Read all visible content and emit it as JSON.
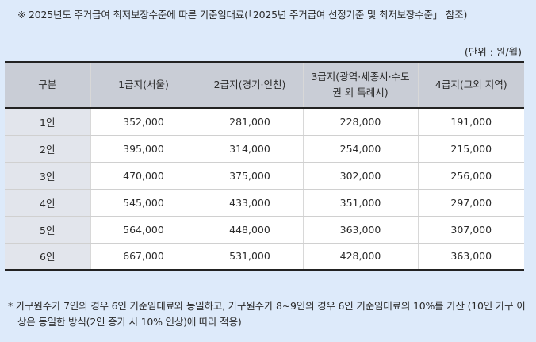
{
  "title": "※ 2025년도 주거급여 최저보장수준에 따른 기준임대료(「2025년 주거급여 선정기준 및 최저보장수준」 참조)",
  "unit": "(단위 : 원/월)",
  "table": {
    "headers": [
      "구분",
      "1급지(서울)",
      "2급지(경기·인천)",
      "3급지(광역·세종시·수도권 외 특례시)",
      "4급지(그외 지역)"
    ],
    "rows": [
      [
        "1인",
        "352,000",
        "281,000",
        "228,000",
        "191,000"
      ],
      [
        "2인",
        "395,000",
        "314,000",
        "254,000",
        "215,000"
      ],
      [
        "3인",
        "470,000",
        "375,000",
        "302,000",
        "256,000"
      ],
      [
        "4인",
        "545,000",
        "433,000",
        "351,000",
        "297,000"
      ],
      [
        "5인",
        "564,000",
        "448,000",
        "363,000",
        "307,000"
      ],
      [
        "6인",
        "667,000",
        "531,000",
        "428,000",
        "363,000"
      ]
    ]
  },
  "note": "* 가구원수가 7인의 경우 6인 기준임대료와 동일하고, 가구원수가 8~9인의 경우 6인 기준임대료의 10%를 가산 (10인 가구 이상은 동일한 방식(2인 증가 시 10% 인상)에 따라 적용)"
}
